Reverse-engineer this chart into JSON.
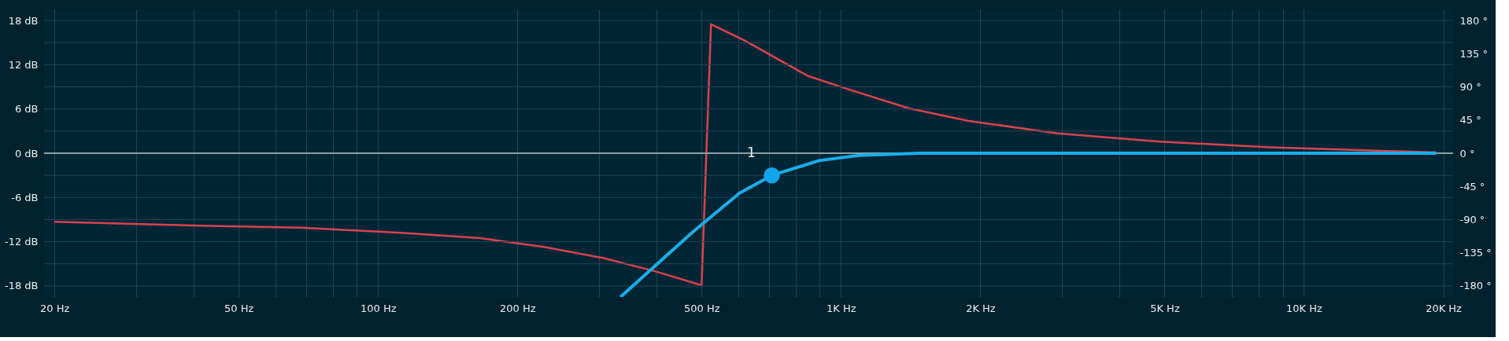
{
  "chart_data": {
    "type": "line",
    "log": "x",
    "grid": true,
    "xlim": [
      19,
      21000
    ],
    "xticks": [
      {
        "value": 20,
        "label": "20 Hz"
      },
      {
        "value": 30,
        "label": null
      },
      {
        "value": 40,
        "label": null
      },
      {
        "value": 50,
        "label": "50 Hz"
      },
      {
        "value": 60,
        "label": null
      },
      {
        "value": 70,
        "label": null
      },
      {
        "value": 80,
        "label": null
      },
      {
        "value": 90,
        "label": null
      },
      {
        "value": 100,
        "label": "100 Hz"
      },
      {
        "value": 200,
        "label": "200 Hz"
      },
      {
        "value": 300,
        "label": null
      },
      {
        "value": 400,
        "label": null
      },
      {
        "value": 500,
        "label": "500 Hz"
      },
      {
        "value": 600,
        "label": null
      },
      {
        "value": 700,
        "label": null
      },
      {
        "value": 800,
        "label": null
      },
      {
        "value": 900,
        "label": null
      },
      {
        "value": 1000,
        "label": "1K Hz"
      },
      {
        "value": 2000,
        "label": "2K Hz"
      },
      {
        "value": 3000,
        "label": null
      },
      {
        "value": 4000,
        "label": null
      },
      {
        "value": 5000,
        "label": "5K Hz"
      },
      {
        "value": 6000,
        "label": null
      },
      {
        "value": 7000,
        "label": null
      },
      {
        "value": 8000,
        "label": null
      },
      {
        "value": 9000,
        "label": null
      },
      {
        "value": 10000,
        "label": "10K Hz"
      },
      {
        "value": 20000,
        "label": "20K Hz"
      }
    ],
    "ylim": [
      -19.5,
      19.5
    ],
    "yticks": [
      {
        "value": -18,
        "label": "-18 dB"
      },
      {
        "value": -15,
        "label": null
      },
      {
        "value": -12,
        "label": "-12 dB"
      },
      {
        "value": -9,
        "label": null
      },
      {
        "value": -6,
        "label": "-6 dB"
      },
      {
        "value": -3,
        "label": null
      },
      {
        "value": 0,
        "label": "0 dB"
      },
      {
        "value": 3,
        "label": null
      },
      {
        "value": 6,
        "label": "6 dB"
      },
      {
        "value": 9,
        "label": null
      },
      {
        "value": 12,
        "label": "12 dB"
      },
      {
        "value": 15,
        "label": null
      },
      {
        "value": 18,
        "label": "18 dB"
      }
    ],
    "y2lim": [
      -195,
      195
    ],
    "y2ticks": [
      {
        "value": -180,
        "label": "-180 °"
      },
      {
        "value": -135,
        "label": "-135 °"
      },
      {
        "value": -90,
        "label": "-90 °"
      },
      {
        "value": -45,
        "label": "-45 °"
      },
      {
        "value": 0,
        "label": "0 °"
      },
      {
        "value": 45,
        "label": "45 °"
      },
      {
        "value": 90,
        "label": "90 °"
      },
      {
        "value": 135,
        "label": "135 °"
      },
      {
        "value": 180,
        "label": "180 °"
      }
    ],
    "ref_lines": [
      {
        "axis": "y",
        "value": 0,
        "color": "#8f9ea4"
      }
    ],
    "series": [
      {
        "axis": "y2",
        "color": "#d9434f",
        "x": [
          20,
          40,
          68,
          112,
          166,
          228,
          306,
          396,
          500,
          524,
          623,
          847,
          1034,
          1400,
          1880,
          2936,
          4820,
          8470,
          19300
        ],
        "values": [
          -93,
          -98,
          -101,
          -108,
          -115,
          -127,
          -142,
          -160,
          -179,
          175,
          152,
          105,
          87,
          61,
          44,
          27,
          16,
          8,
          1
        ]
      },
      {
        "color": "#1aaee8",
        "x": [
          334,
          478,
          604,
          709,
          897,
          1094,
          1480,
          3000,
          19300
        ],
        "values": [
          -19.5,
          -10.7,
          -5.4,
          -3,
          -1,
          -0.3,
          0,
          0,
          0
        ]
      },
      {
        "type": "scatter",
        "color": "#12a5ea",
        "x": [
          709
        ],
        "values": [
          -3
        ]
      }
    ],
    "annotations": [
      {
        "text": "1",
        "x": 709,
        "y": -3
      }
    ]
  }
}
